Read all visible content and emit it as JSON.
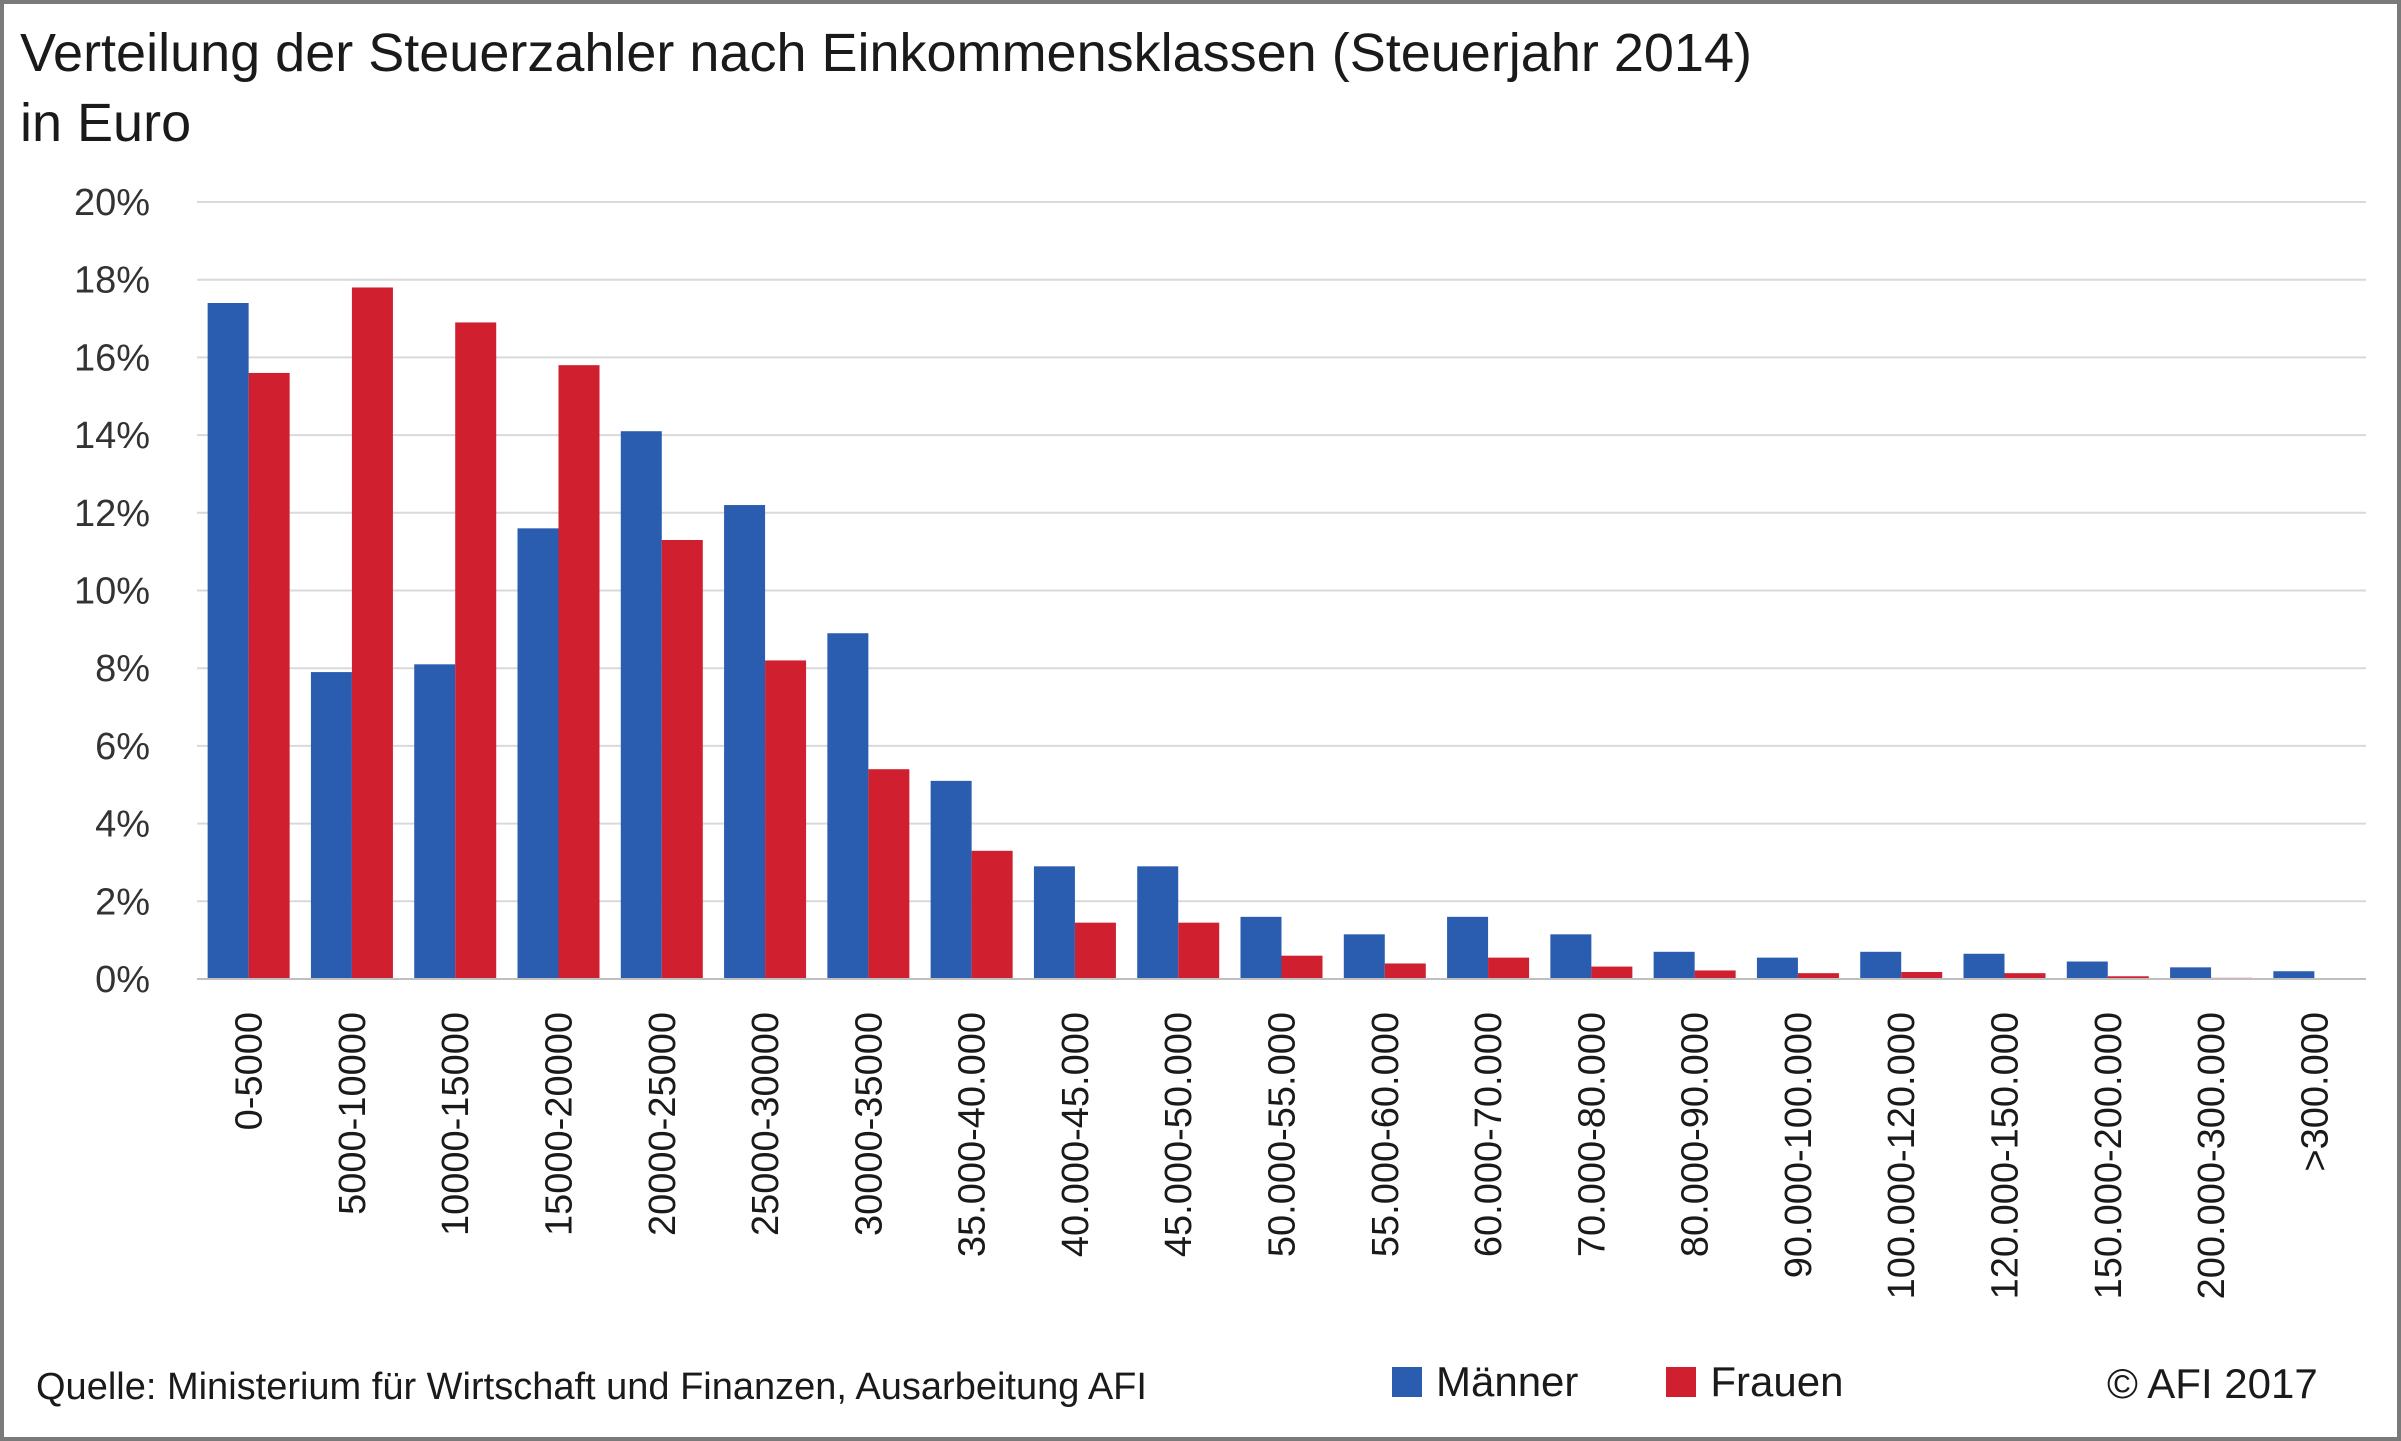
{
  "title_line1": "Verteilung der Steuerzahler nach Einkommensklassen (Steuerjahr 2014)",
  "title_line2": "in Euro",
  "source": "Quelle: Ministerium für Wirtschaft und Finanzen, Ausarbeitung AFI",
  "copyright": "© AFI 2017",
  "colors": {
    "maenner": "#2a5db0",
    "frauen": "#d01f2e",
    "grid": "#d9d9d9"
  },
  "chart_data": {
    "type": "bar",
    "title": "Verteilung der Steuerzahler nach Einkommensklassen (Steuerjahr 2014) in Euro",
    "xlabel": "",
    "ylabel": "",
    "ylim": [
      0,
      20
    ],
    "yticks": [
      "0%",
      "2%",
      "4%",
      "6%",
      "8%",
      "10%",
      "12%",
      "14%",
      "16%",
      "18%",
      "20%"
    ],
    "grid": true,
    "legend": "bottom",
    "categories": [
      "0-5000",
      "5000-10000",
      "10000-15000",
      "15000-20000",
      "20000-25000",
      "25000-30000",
      "30000-35000",
      "35.000-40.000",
      "40.000-45.000",
      "45.000-50.000",
      "50.000-55.000",
      "55.000-60.000",
      "60.000-70.000",
      "70.000-80.000",
      "80.000-90.000",
      "90.000-100.000",
      "100.000-120.000",
      "120.000-150.000",
      "150.000-200.000",
      "200.000-300.000",
      ">300.000"
    ],
    "series": [
      {
        "name": "Männer",
        "values": [
          17.4,
          7.9,
          8.1,
          11.6,
          14.1,
          12.2,
          8.9,
          5.1,
          2.9,
          2.9,
          1.6,
          1.15,
          1.6,
          1.15,
          0.7,
          0.55,
          0.7,
          0.65,
          0.45,
          0.3,
          0.2
        ]
      },
      {
        "name": "Frauen",
        "values": [
          15.6,
          17.8,
          16.9,
          15.8,
          11.3,
          8.2,
          5.4,
          3.3,
          1.45,
          1.45,
          0.6,
          0.4,
          0.55,
          0.32,
          0.22,
          0.15,
          0.18,
          0.15,
          0.07,
          0.03,
          0.0
        ]
      }
    ]
  }
}
